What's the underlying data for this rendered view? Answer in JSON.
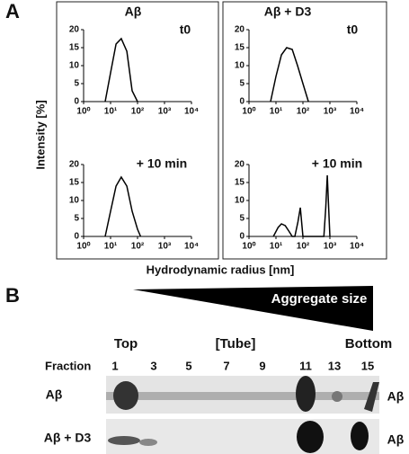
{
  "panel_a": {
    "label": "A",
    "ylabel": "Intensity [%]",
    "xlabel": "Hydrodynamic radius [nm]"
  },
  "chart_data": [
    {
      "type": "line",
      "title": "Aβ",
      "annotation": "t0",
      "xscale": "log",
      "xlim": [
        1,
        10000
      ],
      "ylim": [
        0,
        20
      ],
      "xticks": [
        {
          "value": 1,
          "label": "10⁰"
        },
        {
          "value": 10,
          "label": "10¹"
        },
        {
          "value": 100,
          "label": "10²"
        },
        {
          "value": 1000,
          "label": "10³"
        },
        {
          "value": 10000,
          "label": "10⁴"
        }
      ],
      "yticks": [
        0,
        5,
        10,
        15,
        20
      ],
      "color": "#000",
      "x": [
        6.3,
        10,
        16,
        25,
        40,
        63,
        100
      ],
      "y": [
        0,
        8,
        16,
        17.5,
        14,
        3,
        0
      ]
    },
    {
      "type": "line",
      "annotation": "+ 10 min",
      "xscale": "log",
      "xlim": [
        1,
        10000
      ],
      "ylim": [
        0,
        20
      ],
      "xticks": [
        {
          "value": 1,
          "label": "10⁰"
        },
        {
          "value": 10,
          "label": "10¹"
        },
        {
          "value": 100,
          "label": "10²"
        },
        {
          "value": 1000,
          "label": "10³"
        },
        {
          "value": 10000,
          "label": "10⁴"
        }
      ],
      "yticks": [
        0,
        5,
        10,
        15,
        20
      ],
      "color": "#000",
      "x": [
        6.3,
        10,
        16,
        25,
        40,
        63,
        100,
        130
      ],
      "y": [
        0,
        7,
        14,
        16.5,
        14,
        7,
        2,
        0
      ]
    },
    {
      "type": "line",
      "title": "Aβ + D3",
      "annotation": "t0",
      "xscale": "log",
      "xlim": [
        1,
        10000
      ],
      "ylim": [
        0,
        20
      ],
      "xticks": [
        {
          "value": 1,
          "label": "10⁰"
        },
        {
          "value": 10,
          "label": "10¹"
        },
        {
          "value": 100,
          "label": "10²"
        },
        {
          "value": 1000,
          "label": "10³"
        },
        {
          "value": 10000,
          "label": "10⁴"
        }
      ],
      "yticks": [
        0,
        5,
        10,
        15,
        20
      ],
      "color": "#000",
      "x": [
        6.3,
        10,
        16,
        25,
        40,
        63,
        100,
        160
      ],
      "y": [
        0,
        7,
        13,
        15,
        14.5,
        10,
        5,
        0
      ]
    },
    {
      "type": "line",
      "annotation": "+ 10 min",
      "xscale": "log",
      "xlim": [
        1,
        10000
      ],
      "ylim": [
        0,
        20
      ],
      "xticks": [
        {
          "value": 1,
          "label": "10⁰"
        },
        {
          "value": 10,
          "label": "10¹"
        },
        {
          "value": 100,
          "label": "10²"
        },
        {
          "value": 1000,
          "label": "10³"
        },
        {
          "value": 10000,
          "label": "10⁴"
        }
      ],
      "yticks": [
        0,
        5,
        10,
        15,
        20
      ],
      "color": "#000",
      "x": [
        8,
        12,
        16,
        22,
        30,
        40,
        50,
        65,
        80,
        100,
        600,
        700,
        800,
        900,
        1000
      ],
      "y": [
        0,
        2.5,
        3.5,
        3,
        1.5,
        0,
        0,
        4,
        8,
        0,
        0,
        8,
        17,
        8,
        0
      ]
    }
  ],
  "gel": {
    "label": "B",
    "wedge": "Aggregate size",
    "top": "Top",
    "tube": "[Tube]",
    "bottom": "Bottom",
    "fraction": "Fraction",
    "fractions": [
      1,
      3,
      5,
      7,
      9,
      11,
      13,
      15
    ],
    "rows": [
      {
        "left": "Aβ",
        "right": "Aβ"
      },
      {
        "left": "Aβ + D3",
        "right": "Aβ"
      }
    ]
  }
}
